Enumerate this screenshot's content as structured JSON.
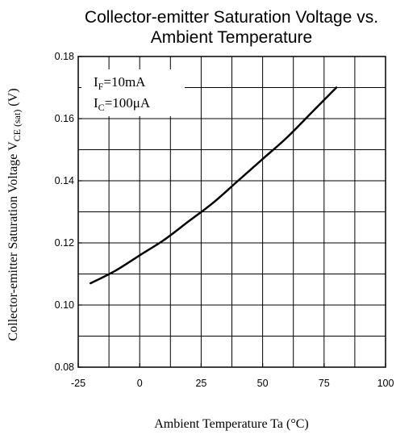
{
  "chart_data": {
    "type": "line",
    "title_line1": "Collector-emitter Saturation Voltage vs.",
    "title_line2": "Ambient Temperature",
    "xlabel": "Ambient Temperature Ta (°C)",
    "ylabel": {
      "main": "Collector-emitter Saturation Voltage V",
      "subscript": "CE (sat)",
      "unit": " (V)"
    },
    "xlim": [
      -25,
      100
    ],
    "ylim": [
      0.08,
      0.18
    ],
    "x_ticks": [
      -25,
      0,
      25,
      50,
      75,
      100
    ],
    "x_tick_labels": [
      "-25",
      "0",
      "25",
      "50",
      "75",
      "100"
    ],
    "y_ticks": [
      0.08,
      0.1,
      0.12,
      0.14,
      0.16,
      0.18
    ],
    "y_tick_labels": [
      "0.08",
      "0.10",
      "0.12",
      "0.14",
      "0.16",
      "0.18"
    ],
    "grid": true,
    "annotations": [
      {
        "main": "I",
        "subscript": "F",
        "value": "=10mA"
      },
      {
        "main": "I",
        "subscript": "C",
        "value": "=100μA"
      }
    ],
    "series": [
      {
        "x": [
          -20,
          -10,
          0,
          10,
          20,
          30,
          40,
          50,
          60,
          70,
          80
        ],
        "y": [
          0.107,
          0.111,
          0.116,
          0.121,
          0.127,
          0.133,
          0.14,
          0.147,
          0.154,
          0.162,
          0.17
        ]
      }
    ]
  }
}
